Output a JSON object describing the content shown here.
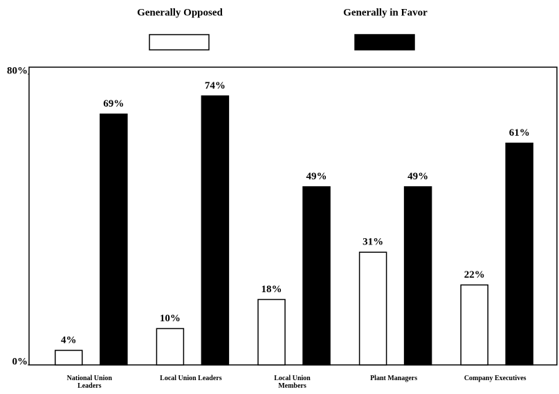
{
  "chart_data": {
    "type": "bar",
    "categories": [
      "National Union Leaders",
      "Local Union Leaders",
      "Local Union Members",
      "Plant Managers",
      "Company Executives"
    ],
    "series": [
      {
        "name": "Generally Opposed",
        "color": "#ffffff",
        "values": [
          4,
          10,
          18,
          31,
          22
        ],
        "value_labels": [
          "4%",
          "10%",
          "18%",
          "31%",
          "22%"
        ]
      },
      {
        "name": "Generally in Favor",
        "color": "#000000",
        "values": [
          69,
          74,
          49,
          49,
          61
        ],
        "value_labels": [
          "69%",
          "74%",
          "49%",
          "49%",
          "61%"
        ]
      }
    ],
    "ylim": [
      0,
      80
    ],
    "yticks": [
      {
        "value": 0,
        "label": "0%"
      },
      {
        "value": 80,
        "label": "80%"
      }
    ]
  }
}
